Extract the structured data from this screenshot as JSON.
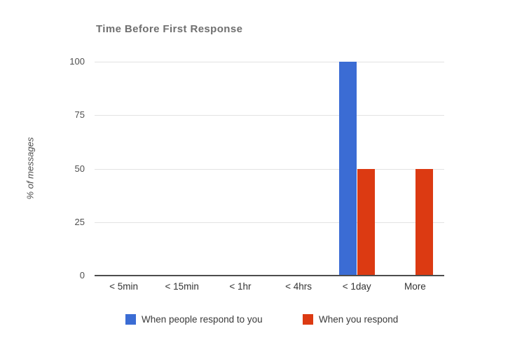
{
  "chart_data": {
    "type": "bar",
    "title": "Time Before First Response",
    "ylabel": "% of messages",
    "xlabel": "",
    "categories": [
      "< 5min",
      "< 15min",
      "< 1hr",
      "< 4hrs",
      "< 1day",
      "More"
    ],
    "series": [
      {
        "name": "When people respond to you",
        "color": "#3b6cd4",
        "values": [
          0,
          0,
          0,
          0,
          100,
          0
        ]
      },
      {
        "name": "When you respond",
        "color": "#dc3a12",
        "values": [
          0,
          0,
          0,
          0,
          50,
          50
        ]
      }
    ],
    "ylim": [
      0,
      100
    ],
    "yticks": [
      0,
      25,
      50,
      75,
      100
    ],
    "grid": true,
    "legend_position": "bottom"
  },
  "style_colors": {
    "background": "#ffffff",
    "title_text": "#6f6f6f",
    "axis_tick_text": "#4f4f4f",
    "category_text": "#333333",
    "legend_text": "#3a3a3a",
    "gridline": "#e2e2e2",
    "baseline": "#4d4d4d"
  }
}
